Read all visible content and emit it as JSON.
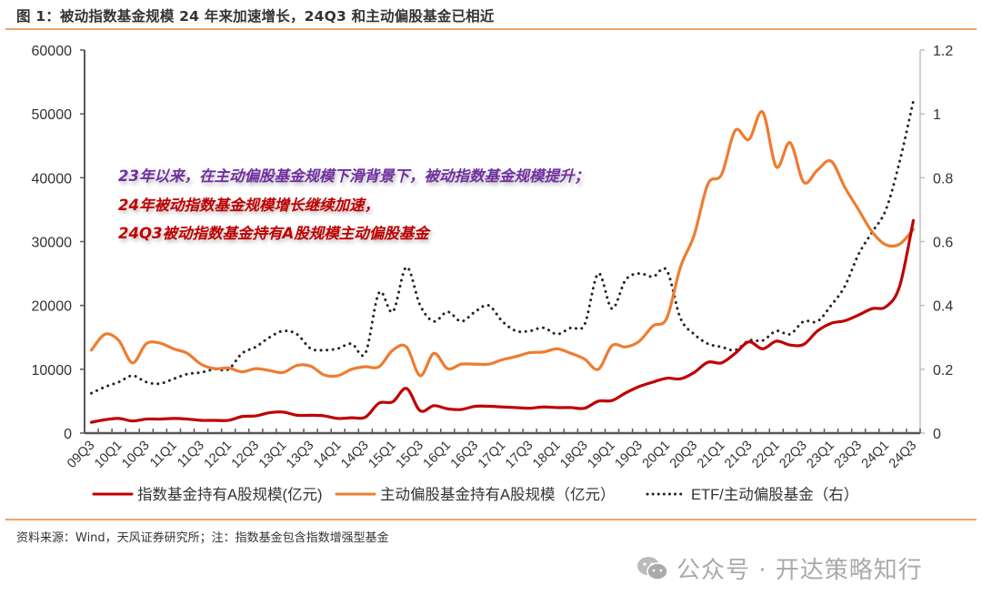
{
  "title": "图 1：被动指数基金规模 24 年来加速增长，24Q3 和主动偏股基金已相近",
  "source": "资料来源：Wind，天风证券研究所；注：指数基金包含指数增强型基金",
  "watermark": {
    "icon": "wechat-icon",
    "text": "公众号 · 开达策略知行"
  },
  "annotation": {
    "lines": [
      {
        "text": "23年以来，在主动偏股基金规模下滑背景下，被动指数基金规模提升；",
        "color": "#7030a0"
      },
      {
        "text": "24年被动指数基金规模增长继续加速，",
        "color": "#c00000"
      },
      {
        "text": "24Q3被动指数基金持有A股规模主动偏股基金",
        "color": "#c00000"
      }
    ]
  },
  "colors": {
    "accent_rule": "#f0a36a",
    "axis": "#595959"
  },
  "chart_data": {
    "type": "line",
    "title": "",
    "xlabel": "",
    "ylabel": "",
    "ylim": [
      0,
      60000
    ],
    "y_ticks": [
      "0",
      "10000",
      "20000",
      "30000",
      "40000",
      "50000",
      "60000"
    ],
    "y2lim": [
      0,
      1.2
    ],
    "y2_ticks": [
      "0",
      "0.2",
      "0.4",
      "0.6",
      "0.8",
      "1",
      "1.2"
    ],
    "grid": false,
    "legend_position": "bottom",
    "categories": [
      "09Q3",
      "09Q4",
      "10Q1",
      "10Q2",
      "10Q3",
      "10Q4",
      "11Q1",
      "11Q2",
      "11Q3",
      "11Q4",
      "12Q1",
      "12Q2",
      "12Q3",
      "12Q4",
      "13Q1",
      "13Q2",
      "13Q3",
      "13Q4",
      "14Q1",
      "14Q2",
      "14Q3",
      "14Q4",
      "15Q1",
      "15Q2",
      "15Q3",
      "15Q4",
      "16Q1",
      "16Q2",
      "16Q3",
      "16Q4",
      "17Q1",
      "17Q2",
      "17Q3",
      "17Q4",
      "18Q1",
      "18Q2",
      "18Q3",
      "18Q4",
      "19Q1",
      "19Q2",
      "19Q3",
      "19Q4",
      "20Q1",
      "20Q2",
      "20Q3",
      "20Q4",
      "21Q1",
      "21Q2",
      "21Q3",
      "21Q4",
      "22Q1",
      "22Q2",
      "22Q3",
      "22Q4",
      "23Q1",
      "23Q2",
      "23Q3",
      "23Q4",
      "24Q1",
      "24Q2",
      "24Q3"
    ],
    "x_tick_labels": [
      "09Q3",
      "10Q1",
      "10Q3",
      "11Q1",
      "11Q3",
      "12Q1",
      "12Q3",
      "13Q1",
      "13Q3",
      "14Q1",
      "14Q3",
      "15Q1",
      "15Q3",
      "16Q1",
      "16Q3",
      "17Q1",
      "17Q3",
      "18Q1",
      "18Q3",
      "19Q1",
      "19Q3",
      "20Q1",
      "20Q3",
      "21Q1",
      "21Q3",
      "22Q1",
      "22Q3",
      "23Q1",
      "23Q3",
      "24Q1",
      "24Q3"
    ],
    "series": [
      {
        "name": "指数基金持有A股规模(亿元)",
        "axis": "left",
        "color": "#c00000",
        "style": "solid",
        "values": [
          1700,
          2100,
          2300,
          1900,
          2200,
          2200,
          2300,
          2200,
          2000,
          2000,
          2000,
          2600,
          2700,
          3200,
          3300,
          2800,
          2800,
          2700,
          2300,
          2400,
          2500,
          4700,
          4900,
          7000,
          3500,
          4300,
          3800,
          3700,
          4200,
          4200,
          4100,
          4000,
          3900,
          4100,
          4000,
          4000,
          3900,
          5000,
          5100,
          6300,
          7300,
          8000,
          8600,
          8500,
          9500,
          11100,
          11000,
          12500,
          14300,
          13200,
          14400,
          13800,
          13900,
          16000,
          17200,
          17600,
          18500,
          19500,
          19800,
          23000,
          33300
        ]
      },
      {
        "name": "主动偏股基金持有A股规模（亿元）",
        "axis": "left",
        "color": "#ed7d31",
        "style": "solid",
        "values": [
          13000,
          15500,
          14500,
          11000,
          14000,
          14100,
          13200,
          12500,
          10800,
          10100,
          10200,
          9600,
          10100,
          9800,
          9500,
          10600,
          10500,
          9100,
          9000,
          10000,
          10400,
          10400,
          13000,
          13500,
          9000,
          12500,
          10100,
          10800,
          10800,
          10800,
          11500,
          12000,
          12600,
          12700,
          13200,
          12500,
          11600,
          10000,
          13700,
          13500,
          14400,
          16800,
          18000,
          26000,
          31000,
          39000,
          40500,
          47400,
          46000,
          50300,
          41700,
          45500,
          39300,
          41200,
          42600,
          38500,
          35000,
          31500,
          29500,
          29600,
          31900
        ]
      },
      {
        "name": "ETF/主动偏股基金（右）",
        "axis": "right",
        "color": "#262626",
        "style": "dotted",
        "values": [
          0.125,
          0.145,
          0.16,
          0.18,
          0.16,
          0.155,
          0.17,
          0.185,
          0.19,
          0.2,
          0.2,
          0.25,
          0.27,
          0.3,
          0.32,
          0.31,
          0.265,
          0.26,
          0.265,
          0.28,
          0.25,
          0.44,
          0.38,
          0.52,
          0.4,
          0.35,
          0.38,
          0.35,
          0.38,
          0.4,
          0.35,
          0.32,
          0.32,
          0.33,
          0.31,
          0.33,
          0.34,
          0.5,
          0.39,
          0.48,
          0.5,
          0.49,
          0.51,
          0.36,
          0.31,
          0.28,
          0.27,
          0.26,
          0.29,
          0.29,
          0.32,
          0.31,
          0.35,
          0.35,
          0.4,
          0.46,
          0.56,
          0.63,
          0.7,
          0.85,
          1.04
        ]
      }
    ]
  }
}
